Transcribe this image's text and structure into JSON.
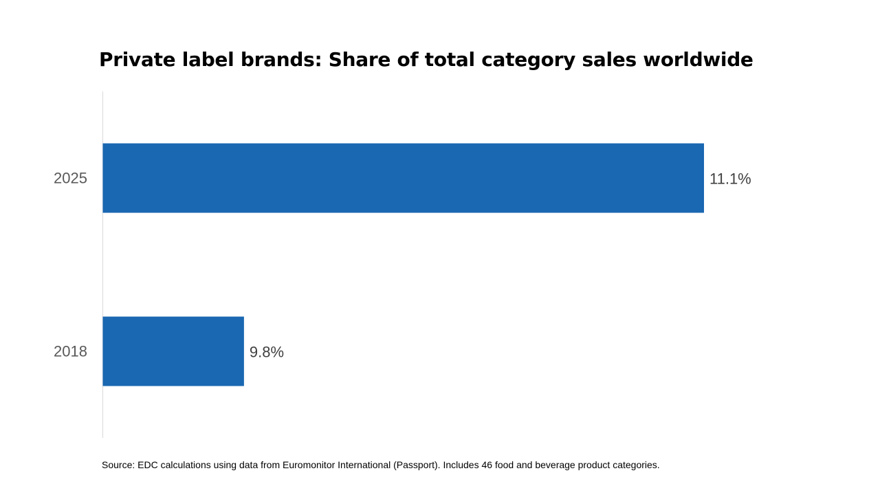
{
  "chart_data": {
    "type": "bar",
    "orientation": "horizontal",
    "title": "Private label brands: Share of total category sales worldwide",
    "categories": [
      "2025",
      "2018"
    ],
    "values": [
      11.1,
      9.8
    ],
    "value_labels": [
      "11.1%",
      "9.8%"
    ],
    "unit": "%",
    "xlim": [
      9.4,
      11.1
    ],
    "grid": false,
    "legend": "none",
    "bar_color": "#1a67b2",
    "axis_color": "#d9d9d9"
  },
  "footer": {
    "source": "Source: EDC calculations using data from Euromonitor International (Passport). Includes 46 food and beverage product categories."
  }
}
